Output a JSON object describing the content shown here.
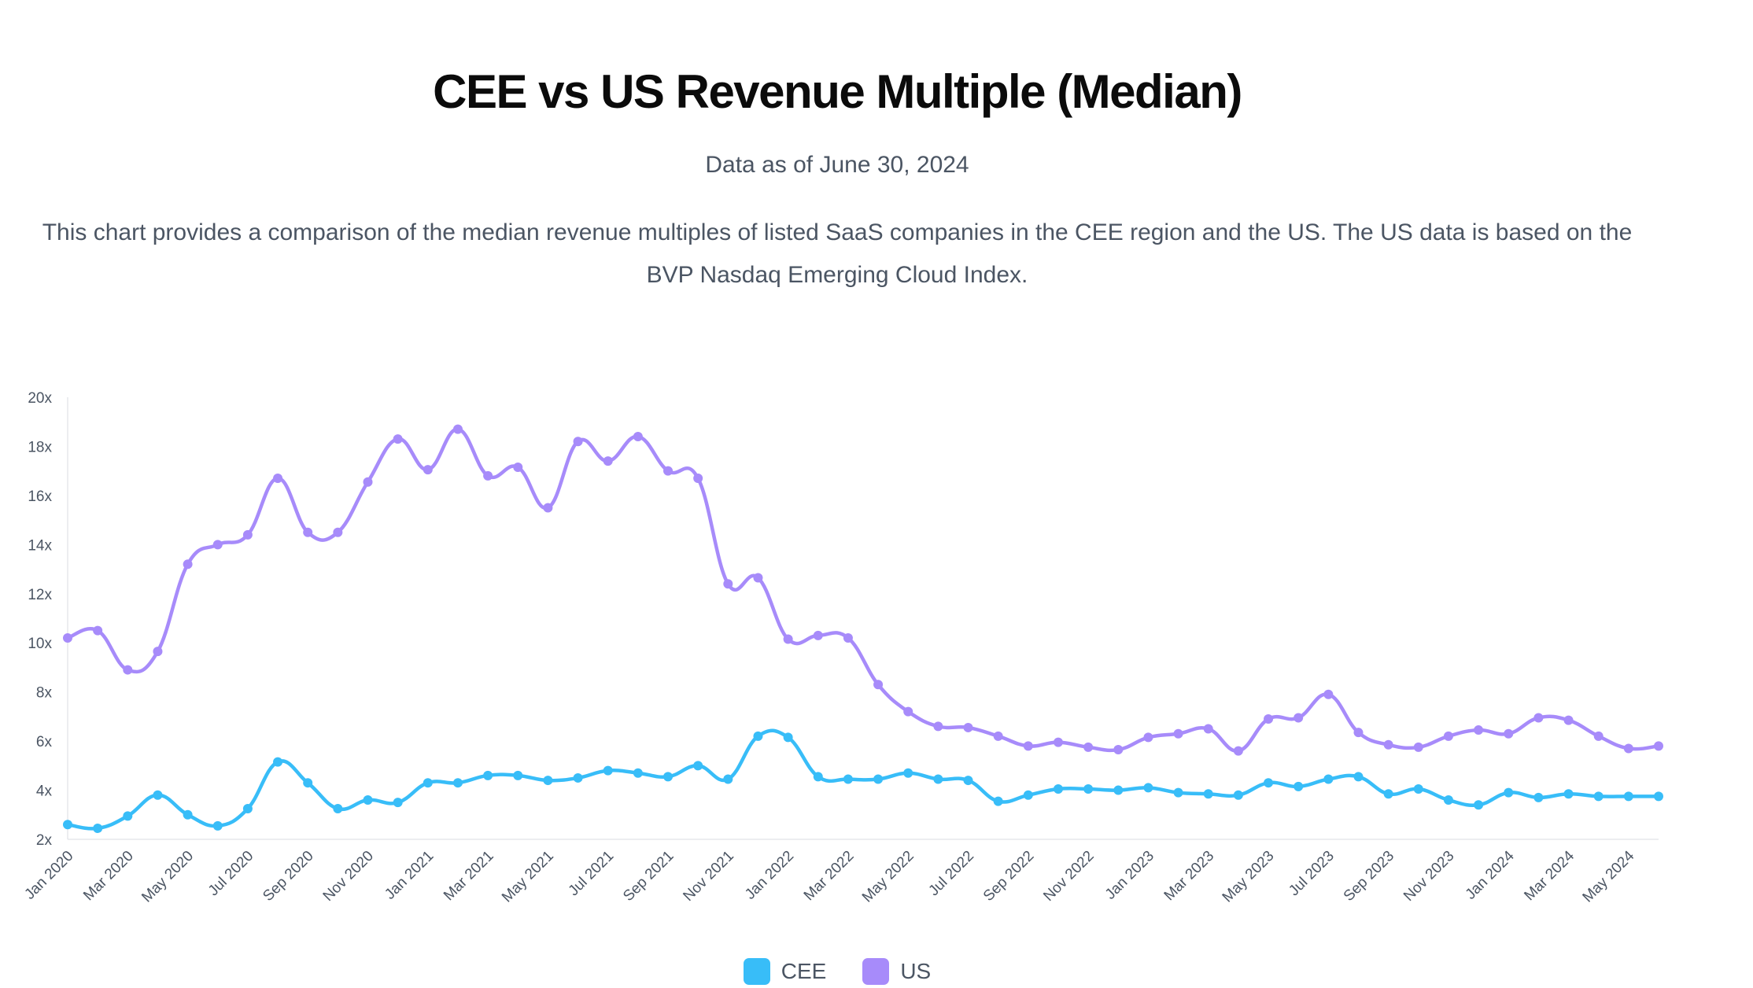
{
  "title": "CEE vs US Revenue Multiple (Median)",
  "subtitle": "Data as of June 30, 2024",
  "description": "This chart provides a comparison of the median revenue multiples of listed SaaS companies in the CEE region and the US. The US data is based on the BVP Nasdaq Emerging Cloud Index.",
  "chart_data": {
    "type": "line",
    "title": "CEE vs US Revenue Multiple (Median)",
    "xlabel": "",
    "ylabel": "",
    "ylim": [
      2,
      20
    ],
    "yticks": [
      "2x",
      "4x",
      "6x",
      "8x",
      "10x",
      "12x",
      "14x",
      "16x",
      "18x",
      "20x"
    ],
    "ytick_values": [
      2,
      4,
      6,
      8,
      10,
      12,
      14,
      16,
      18,
      20
    ],
    "x": [
      "Jan 2020",
      "Feb 2020",
      "Mar 2020",
      "Apr 2020",
      "May 2020",
      "Jun 2020",
      "Jul 2020",
      "Aug 2020",
      "Sep 2020",
      "Oct 2020",
      "Nov 2020",
      "Dec 2020",
      "Jan 2021",
      "Feb 2021",
      "Mar 2021",
      "Apr 2021",
      "May 2021",
      "Jun 2021",
      "Jul 2021",
      "Aug 2021",
      "Sep 2021",
      "Oct 2021",
      "Nov 2021",
      "Dec 2021",
      "Jan 2022",
      "Feb 2022",
      "Mar 2022",
      "Apr 2022",
      "May 2022",
      "Jun 2022",
      "Jul 2022",
      "Aug 2022",
      "Sep 2022",
      "Oct 2022",
      "Nov 2022",
      "Dec 2022",
      "Jan 2023",
      "Feb 2023",
      "Mar 2023",
      "Apr 2023",
      "May 2023",
      "Jun 2023",
      "Jul 2023",
      "Aug 2023",
      "Sep 2023",
      "Oct 2023",
      "Nov 2023",
      "Dec 2023",
      "Jan 2024",
      "Feb 2024",
      "Mar 2024",
      "Apr 2024",
      "May 2024",
      "Jun 2024"
    ],
    "xtick_labels": [
      "Jan 2020",
      "Mar 2020",
      "May 2020",
      "Jul 2020",
      "Sep 2020",
      "Nov 2020",
      "Jan 2021",
      "Mar 2021",
      "May 2021",
      "Jul 2021",
      "Sep 2021",
      "Nov 2021",
      "Jan 2022",
      "Mar 2022",
      "May 2022",
      "Jul 2022",
      "Sep 2022",
      "Nov 2022",
      "Jan 2023",
      "Mar 2023",
      "May 2023",
      "Jul 2023",
      "Sep 2023",
      "Nov 2023",
      "Jan 2024",
      "Mar 2024",
      "May 2024"
    ],
    "series": [
      {
        "name": "CEE",
        "color": "#38bdf8",
        "values": [
          2.6,
          2.45,
          2.95,
          3.8,
          3.0,
          2.55,
          3.25,
          5.15,
          4.3,
          3.25,
          3.6,
          3.5,
          4.3,
          4.3,
          4.6,
          4.6,
          4.4,
          4.5,
          4.8,
          4.7,
          4.55,
          5.0,
          4.45,
          6.2,
          6.15,
          4.55,
          4.45,
          4.45,
          4.7,
          4.45,
          4.4,
          3.55,
          3.8,
          4.05,
          4.05,
          4.0,
          4.1,
          3.9,
          3.85,
          3.8,
          4.3,
          4.15,
          4.45,
          4.55,
          3.85,
          4.05,
          3.6,
          3.4,
          3.9,
          3.7,
          3.85,
          3.75,
          3.75,
          3.75
        ]
      },
      {
        "name": "US",
        "color": "#a78bfa",
        "values": [
          10.2,
          10.5,
          8.9,
          9.65,
          13.2,
          14.0,
          14.4,
          16.7,
          14.5,
          14.5,
          16.55,
          18.3,
          17.05,
          18.7,
          16.8,
          17.15,
          15.5,
          18.2,
          17.4,
          18.4,
          17.0,
          16.7,
          12.4,
          12.65,
          10.15,
          10.3,
          10.2,
          8.3,
          7.2,
          6.6,
          6.55,
          6.2,
          5.8,
          5.95,
          5.75,
          5.65,
          6.15,
          6.3,
          6.5,
          5.6,
          6.9,
          6.95,
          7.9,
          6.35,
          5.85,
          5.75,
          6.2,
          6.45,
          6.3,
          6.95,
          6.85,
          6.2,
          5.7,
          5.8
        ]
      }
    ],
    "legend": "bottom-center",
    "grid": false
  }
}
